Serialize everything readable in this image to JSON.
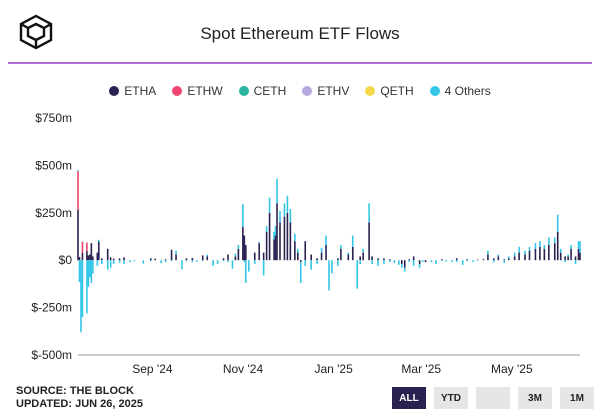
{
  "header": {
    "logo_icon": "the-block-cube-icon",
    "title": "Spot Ethereum ETF Flows"
  },
  "colors": {
    "ETHA": "#2a2150",
    "ETHW": "#f0466e",
    "CETH": "#2bb5a0",
    "ETHV": "#b6a8e0",
    "QETH": "#f5d94a",
    "others": "#33c6e8",
    "accent": "#b06fd6",
    "active_button": "#2a2150"
  },
  "chart_data": {
    "type": "bar",
    "stacked": true,
    "ylim": [
      -500,
      750
    ],
    "y_ticks": [
      -500,
      -250,
      0,
      250,
      500,
      750
    ],
    "y_tick_labels": [
      "$-500m",
      "$-250m",
      "$0",
      "$250m",
      "$500m",
      "$750m"
    ],
    "x_tick_labels": [
      "Sep '24",
      "Nov '24",
      "Jan '25",
      "Mar '25",
      "May '25"
    ],
    "x_tick_dates": [
      "2024-09-01",
      "2024-11-01",
      "2025-01-01",
      "2025-03-01",
      "2025-05-01"
    ],
    "date_range": [
      "2024-07-23",
      "2025-06-26"
    ],
    "legend": [
      "ETHA",
      "ETHW",
      "CETH",
      "ETHV",
      "QETH",
      "4 Others"
    ],
    "legend_position": "top",
    "grid": false,
    "points": [
      {
        "date": "2024-07-23",
        "ETHA": 266,
        "ETHW": 204,
        "others": 5
      },
      {
        "date": "2024-07-24",
        "ETHA": 17,
        "others": -115
      },
      {
        "date": "2024-07-25",
        "others": -380
      },
      {
        "date": "2024-07-26",
        "ETHA": 40,
        "ETHW": 58,
        "others": -300
      },
      {
        "date": "2024-07-29",
        "ETHA": 48,
        "ETHW": 45,
        "others": -280
      },
      {
        "date": "2024-07-30",
        "ETHA": 25,
        "others": -140
      },
      {
        "date": "2024-07-31",
        "ETHA": 30,
        "others": -90
      },
      {
        "date": "2024-08-01",
        "ETHA": 90,
        "others": -120
      },
      {
        "date": "2024-08-02",
        "ETHA": 20,
        "others": -70
      },
      {
        "date": "2024-08-05",
        "ETHA": 40,
        "others": -30
      },
      {
        "date": "2024-08-06",
        "ETHA": 98,
        "others": 10
      },
      {
        "date": "2024-08-08",
        "ETHA": 10,
        "others": -20
      },
      {
        "date": "2024-08-12",
        "ETHA": 60,
        "others": -50
      },
      {
        "date": "2024-08-14",
        "ETHA": 15,
        "others": -40
      },
      {
        "date": "2024-08-16",
        "ETHA": 8,
        "others": -20
      },
      {
        "date": "2024-08-20",
        "ETHA": 10,
        "others": -12
      },
      {
        "date": "2024-08-23",
        "ETHA": 15,
        "others": -20
      },
      {
        "date": "2024-08-27",
        "others": -10
      },
      {
        "date": "2024-08-30",
        "others": -5
      },
      {
        "date": "2024-09-05",
        "others": -18
      },
      {
        "date": "2024-09-10",
        "ETHA": 10,
        "others": -5
      },
      {
        "date": "2024-09-13",
        "ETHA": 8
      },
      {
        "date": "2024-09-17",
        "others": -15
      },
      {
        "date": "2024-09-20",
        "ETHA": 5,
        "others": -10
      },
      {
        "date": "2024-09-24",
        "ETHA": 55,
        "others": -5
      },
      {
        "date": "2024-09-27",
        "ETHA": 30,
        "others": 20
      },
      {
        "date": "2024-10-01",
        "others": -48
      },
      {
        "date": "2024-10-04",
        "ETHA": 10,
        "others": -5
      },
      {
        "date": "2024-10-08",
        "ETHA": 12,
        "others": -10
      },
      {
        "date": "2024-10-11",
        "others": -8
      },
      {
        "date": "2024-10-15",
        "ETHA": 25,
        "others": -5
      },
      {
        "date": "2024-10-18",
        "ETHA": 20,
        "others": 10
      },
      {
        "date": "2024-10-22",
        "others": -30
      },
      {
        "date": "2024-10-25",
        "others": -20
      },
      {
        "date": "2024-10-29",
        "ETHA": 10,
        "others": -5
      },
      {
        "date": "2024-11-01",
        "ETHA": 30,
        "others": -10
      },
      {
        "date": "2024-11-04",
        "others": -45
      },
      {
        "date": "2024-11-06",
        "ETHA": 20,
        "others": 15
      },
      {
        "date": "2024-11-08",
        "ETHA": 60,
        "others": 20
      },
      {
        "date": "2024-11-11",
        "ETHA": 175,
        "others": 120
      },
      {
        "date": "2024-11-12",
        "ETHA": 130,
        "others": -10
      },
      {
        "date": "2024-11-13",
        "ETHA": 80,
        "others": -120
      },
      {
        "date": "2024-11-15",
        "others": -60
      },
      {
        "date": "2024-11-19",
        "ETHA": 40,
        "others": -20
      },
      {
        "date": "2024-11-22",
        "ETHA": 90,
        "others": 5
      },
      {
        "date": "2024-11-25",
        "ETHA": 40,
        "others": -80
      },
      {
        "date": "2024-11-27",
        "ETHA": 150,
        "others": 30
      },
      {
        "date": "2024-11-29",
        "ETHA": 250,
        "others": 80
      },
      {
        "date": "2024-12-02",
        "ETHA": 110,
        "others": 40
      },
      {
        "date": "2024-12-03",
        "ETHA": 130,
        "others": 50
      },
      {
        "date": "2024-12-04",
        "ETHA": 300,
        "others": 130
      },
      {
        "date": "2024-12-06",
        "ETHA": 200,
        "others": 60
      },
      {
        "date": "2024-12-09",
        "ETHA": 230,
        "others": 70
      },
      {
        "date": "2024-12-11",
        "ETHA": 250,
        "others": 90
      },
      {
        "date": "2024-12-13",
        "ETHA": 200,
        "others": 70
      },
      {
        "date": "2024-12-16",
        "ETHA": 100,
        "others": 40
      },
      {
        "date": "2024-12-18",
        "ETHA": 40,
        "others": 20
      },
      {
        "date": "2024-12-20",
        "ETHA": -10,
        "others": -110
      },
      {
        "date": "2024-12-23",
        "ETHA": 100,
        "others": -30
      },
      {
        "date": "2024-12-27",
        "ETHA": 30,
        "others": -50
      },
      {
        "date": "2024-12-31",
        "ETHA": 10,
        "others": -20
      },
      {
        "date": "2025-01-03",
        "ETHA": 40,
        "others": 25
      },
      {
        "date": "2025-01-06",
        "ETHA": 80,
        "others": 50
      },
      {
        "date": "2025-01-08",
        "others": -160
      },
      {
        "date": "2025-01-10",
        "others": -70
      },
      {
        "date": "2025-01-14",
        "ETHA": 10,
        "others": -30
      },
      {
        "date": "2025-01-16",
        "ETHA": 60,
        "others": 20
      },
      {
        "date": "2025-01-21",
        "ETHA": 30,
        "others": 10
      },
      {
        "date": "2025-01-24",
        "ETHA": 70,
        "others": 60
      },
      {
        "date": "2025-01-27",
        "others": -150
      },
      {
        "date": "2025-01-29",
        "ETHA": 20,
        "others": -20
      },
      {
        "date": "2025-01-31",
        "ETHA": 40,
        "others": 20
      },
      {
        "date": "2025-02-04",
        "ETHA": 200,
        "others": 100
      },
      {
        "date": "2025-02-06",
        "ETHA": 20,
        "others": -20
      },
      {
        "date": "2025-02-10",
        "ETHA": 10,
        "others": -30
      },
      {
        "date": "2025-02-14",
        "ETHA": 10,
        "others": -20
      },
      {
        "date": "2025-02-18",
        "ETHA": 5,
        "others": -10
      },
      {
        "date": "2025-02-21",
        "others": -15
      },
      {
        "date": "2025-02-24",
        "others": -25
      },
      {
        "date": "2025-02-26",
        "ETHA": -20,
        "others": -20
      },
      {
        "date": "2025-02-28",
        "ETHA": -40,
        "others": -20
      },
      {
        "date": "2025-03-03",
        "ETHA": 5,
        "others": -10
      },
      {
        "date": "2025-03-06",
        "ETHA": 20,
        "others": -30
      },
      {
        "date": "2025-03-10",
        "ETHA": -20,
        "others": -20
      },
      {
        "date": "2025-03-12",
        "others": -10
      },
      {
        "date": "2025-03-14",
        "ETHA": -10
      },
      {
        "date": "2025-03-18",
        "others": -10
      },
      {
        "date": "2025-03-21",
        "others": -20
      },
      {
        "date": "2025-03-25",
        "ETHA": 5,
        "others": -5
      },
      {
        "date": "2025-03-28",
        "others": -8
      },
      {
        "date": "2025-04-01",
        "others": -10
      },
      {
        "date": "2025-04-04",
        "ETHA": 10,
        "others": -10
      },
      {
        "date": "2025-04-08",
        "others": -25
      },
      {
        "date": "2025-04-11",
        "ETHA": 5,
        "others": -5
      },
      {
        "date": "2025-04-15",
        "others": -10
      },
      {
        "date": "2025-04-18",
        "ETHA": 3,
        "others": -3
      },
      {
        "date": "2025-04-22",
        "ETHA": 5,
        "others": 3
      },
      {
        "date": "2025-04-25",
        "ETHA": 30,
        "others": 20
      },
      {
        "date": "2025-04-29",
        "ETHA": 10,
        "others": -10
      },
      {
        "date": "2025-05-02",
        "ETHA": 20,
        "others": 10
      },
      {
        "date": "2025-05-06",
        "ETHA": 5,
        "others": -15
      },
      {
        "date": "2025-05-09",
        "ETHA": 10,
        "others": 10
      },
      {
        "date": "2025-05-13",
        "ETHA": 20,
        "others": 20
      },
      {
        "date": "2025-05-16",
        "ETHA": 40,
        "others": 30
      },
      {
        "date": "2025-05-20",
        "ETHA": 30,
        "others": 20
      },
      {
        "date": "2025-05-23",
        "ETHA": 50,
        "others": 20
      },
      {
        "date": "2025-05-27",
        "ETHA": 60,
        "others": 30
      },
      {
        "date": "2025-05-30",
        "ETHA": 70,
        "others": 30
      },
      {
        "date": "2025-06-02",
        "ETHA": 60,
        "others": 20
      },
      {
        "date": "2025-06-05",
        "ETHA": 80,
        "others": 40
      },
      {
        "date": "2025-06-09",
        "ETHA": 90,
        "others": 30
      },
      {
        "date": "2025-06-11",
        "ETHA": 150,
        "others": 90
      },
      {
        "date": "2025-06-13",
        "ETHA": 40,
        "others": 20
      },
      {
        "date": "2025-06-16",
        "ETHA": 20,
        "others": -10
      },
      {
        "date": "2025-06-18",
        "ETHA": 20,
        "others": 10
      },
      {
        "date": "2025-06-20",
        "ETHA": 60,
        "others": 20
      },
      {
        "date": "2025-06-23",
        "ETHA": 20,
        "others": -20
      },
      {
        "date": "2025-06-25",
        "ETHA": 60,
        "others": 40
      },
      {
        "date": "2025-06-26",
        "ETHA": 40,
        "others": 60
      }
    ]
  },
  "footer": {
    "source": "SOURCE: THE BLOCK",
    "updated": "UPDATED: JUN 26, 2025"
  },
  "range_buttons": [
    {
      "label": "ALL",
      "active": true
    },
    {
      "label": "YTD",
      "active": false
    },
    {
      "label": "",
      "active": false
    },
    {
      "label": "3M",
      "active": false
    },
    {
      "label": "1M",
      "active": false
    }
  ]
}
